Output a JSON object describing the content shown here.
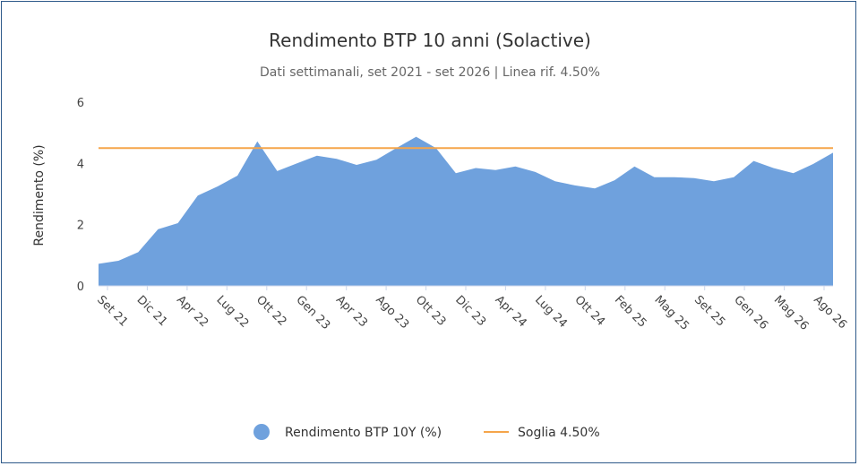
{
  "chart_data": {
    "type": "area",
    "title": "Rendimento BTP 10 anni (Solactive)",
    "subtitle": "Dati settimanali, set 2021 - set 2026 | Linea rif. 4.50%",
    "ylabel": "Rendimento (%)",
    "xlabel": "",
    "ylim": [
      0,
      6
    ],
    "yticks": [
      0,
      2,
      4,
      6
    ],
    "grid": false,
    "legend_position": "bottom",
    "x_tick_labels": [
      "Set 21",
      "Dic 21",
      "Apr 22",
      "Lug 22",
      "Ott 22",
      "Gen 23",
      "Apr 23",
      "Ago 23",
      "Ott 23",
      "Dic 23",
      "Apr 24",
      "Lug 24",
      "Ott 24",
      "Feb 25",
      "Mag 25",
      "Set 25",
      "Gen 26",
      "Mag 26",
      "Ago 26"
    ],
    "series": [
      {
        "name": "Rendimento BTP 10Y (%)",
        "kind": "area",
        "color": "#6fa1dd",
        "values": [
          0.72,
          0.82,
          1.1,
          1.85,
          2.05,
          2.95,
          3.25,
          3.6,
          4.72,
          3.75,
          4.0,
          4.25,
          4.15,
          3.95,
          4.12,
          4.5,
          4.87,
          4.5,
          3.68,
          3.85,
          3.78,
          3.9,
          3.72,
          3.42,
          3.28,
          3.18,
          3.45,
          3.9,
          3.55,
          3.55,
          3.52,
          3.42,
          3.55,
          4.08,
          3.85,
          3.68,
          3.98,
          4.35
        ]
      },
      {
        "name": "Soglia 4.50%",
        "kind": "line",
        "color": "#f5a54a",
        "value": 4.5
      }
    ]
  }
}
